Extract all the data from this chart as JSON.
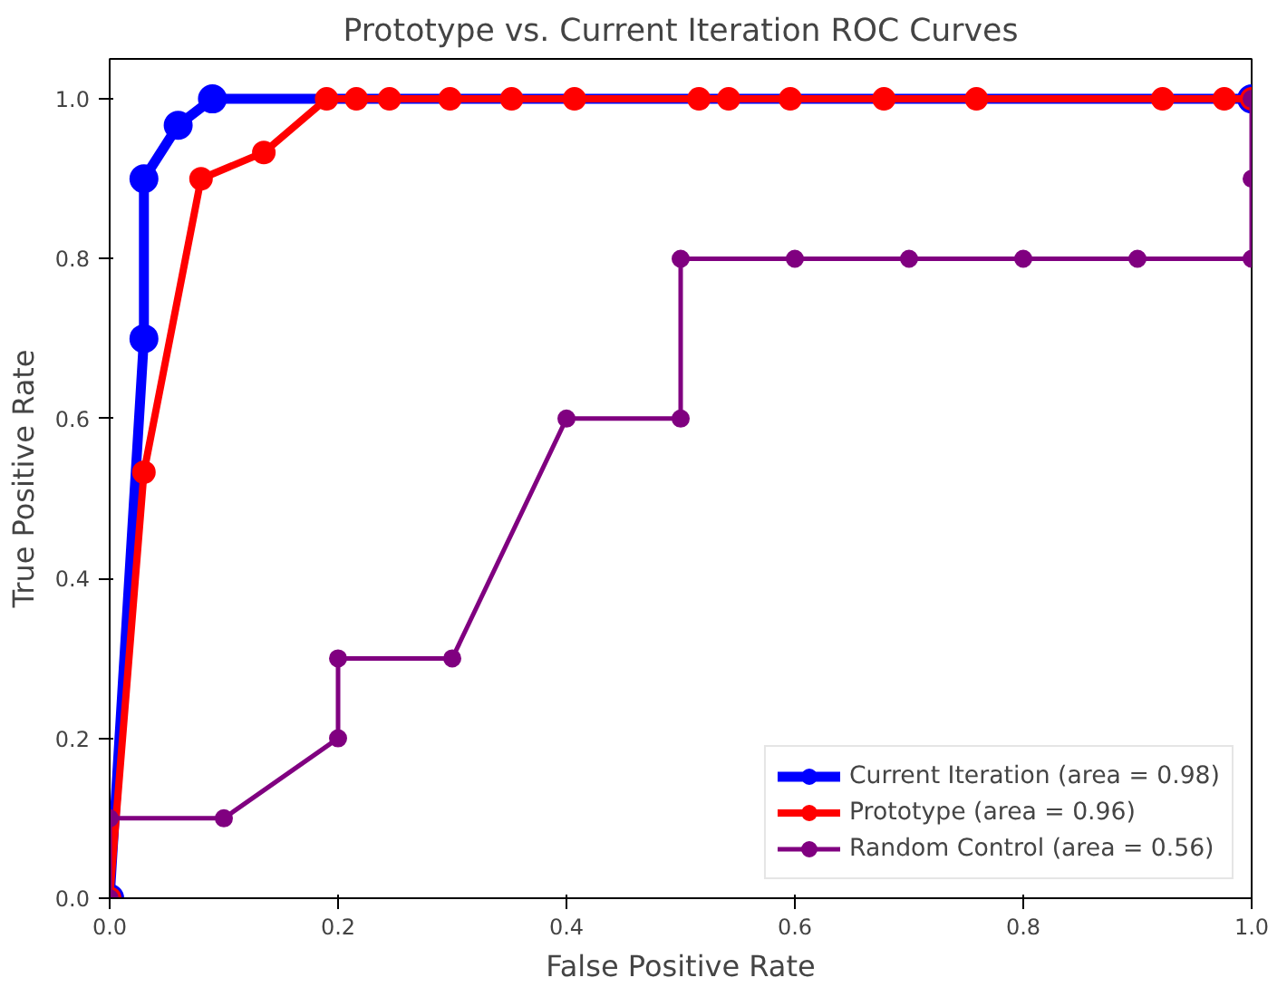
{
  "chart_data": {
    "type": "line",
    "title": "Prototype vs. Current Iteration ROC Curves",
    "xlabel": "False Positive Rate",
    "ylabel": "True Positive Rate",
    "xlim": [
      0,
      1
    ],
    "ylim": [
      0,
      1.05
    ],
    "xticks": [
      {
        "value": 0,
        "label": "0.0"
      },
      0.2,
      0.4,
      0.6,
      0.8,
      {
        "value": 1,
        "label": "1.0"
      }
    ],
    "yticks": [
      {
        "value": 0,
        "label": "0.0"
      },
      0.2,
      0.4,
      0.6,
      0.8,
      {
        "value": 1,
        "label": "1.0"
      }
    ],
    "grid": false,
    "legend": "bottom right",
    "marker": "circle",
    "line_style": "solid",
    "series": [
      {
        "name": "Current Iteration (area = 0.98)",
        "color": "#0000ff",
        "x": [
          0,
          0.03,
          0.03,
          0.06,
          0.09,
          1.0
        ],
        "values": [
          0,
          0.7,
          0.9,
          0.967,
          1.0,
          1.0
        ]
      },
      {
        "name": "Prototype (area = 0.96)",
        "color": "#ff0000",
        "x": [
          0,
          0.03,
          0.08,
          0.135,
          0.19,
          0.216,
          0.245,
          0.298,
          0.352,
          0.407,
          0.516,
          0.542,
          0.596,
          0.678,
          0.759,
          0.922,
          0.976,
          1.0
        ],
        "values": [
          0,
          0.533,
          0.9,
          0.933,
          1,
          1,
          1,
          1,
          1,
          1,
          1,
          1,
          1,
          1,
          1,
          1,
          1,
          1
        ]
      },
      {
        "name": "Random Control (area = 0.56)",
        "color": "#800080",
        "x": [
          0,
          0,
          0.1,
          0.2,
          0.2,
          0.3,
          0.4,
          0.5,
          0.5,
          0.6,
          0.7,
          0.8,
          0.9,
          1.0,
          1.0,
          1.0
        ],
        "values": [
          0,
          0.1,
          0.1,
          0.2,
          0.3,
          0.3,
          0.6,
          0.6,
          0.8,
          0.8,
          0.8,
          0.8,
          0.8,
          0.8,
          0.9,
          1.0
        ]
      }
    ]
  }
}
